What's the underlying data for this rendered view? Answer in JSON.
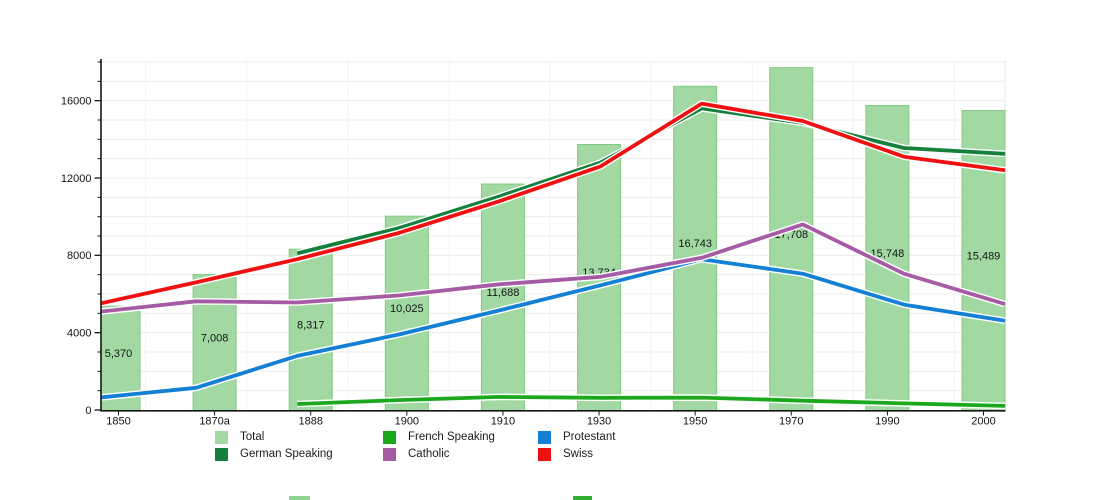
{
  "chart_data": {
    "type": "combo-bar-line",
    "title": "",
    "categories": [
      "1850",
      "1870a",
      "1888",
      "1900",
      "1910",
      "1930",
      "1950",
      "1970",
      "1990",
      "2000"
    ],
    "bars": {
      "name": "Total",
      "color": "#a2d9a2",
      "border_color": "#80ca80",
      "values": [
        5370,
        7008,
        8317,
        10025,
        11688,
        13734,
        16743,
        17708,
        15748,
        15489
      ],
      "labels": [
        "5,370",
        "7,008",
        "8,317",
        "10,025",
        "11,688",
        "13,734",
        "16,743",
        "17,708",
        "15,748",
        "15,489"
      ]
    },
    "series": [
      {
        "name": "Protestant",
        "color": "#1380d4",
        "values": [
          620,
          1150,
          2800,
          3900,
          5150,
          6450,
          7800,
          7050,
          5450,
          4620
        ]
      },
      {
        "name": "Catholic",
        "color": "#a55ca5",
        "values": [
          5060,
          5620,
          5560,
          5920,
          6500,
          6890,
          7870,
          9600,
          7050,
          5480
        ]
      },
      {
        "name": "French Speaking",
        "color": "#1ca81c",
        "values": [
          null,
          null,
          310,
          510,
          680,
          630,
          640,
          480,
          340,
          210
        ]
      },
      {
        "name": "German Speaking",
        "color": "#15803c",
        "values": [
          null,
          null,
          8100,
          9400,
          11050,
          12800,
          15600,
          14850,
          13550,
          13250
        ]
      },
      {
        "name": "Swiss",
        "color": "#ee1111",
        "values": [
          5450,
          6600,
          7800,
          9150,
          10800,
          12600,
          15850,
          14950,
          13100,
          12400
        ]
      }
    ],
    "y_axis": {
      "tick_values": [
        0,
        4000,
        8000,
        12000,
        16000
      ],
      "tick_labels": [
        "0",
        "4000",
        "8000",
        "12000",
        "16000"
      ],
      "range": [
        0,
        18000
      ],
      "minor_step": 1000
    },
    "x_axis": {
      "tick_labels": [
        "1850",
        "1870a",
        "1888",
        "1900",
        "1910",
        "1930",
        "1950",
        "1970",
        "1990",
        "2000"
      ]
    },
    "grid": {
      "horizontal": true,
      "vertical": true
    },
    "legend": {
      "position": "bottom",
      "columns": [
        [
          {
            "label": "Total",
            "color": "#a2d9a2"
          },
          {
            "label": "German Speaking",
            "color": "#15803c"
          }
        ],
        [
          {
            "label": "French Speaking",
            "color": "#1ca81c"
          },
          {
            "label": "Catholic",
            "color": "#a55ca5"
          }
        ],
        [
          {
            "label": "Protestant",
            "color": "#1380d4"
          },
          {
            "label": "Swiss",
            "color": "#ee1111"
          }
        ]
      ]
    }
  }
}
